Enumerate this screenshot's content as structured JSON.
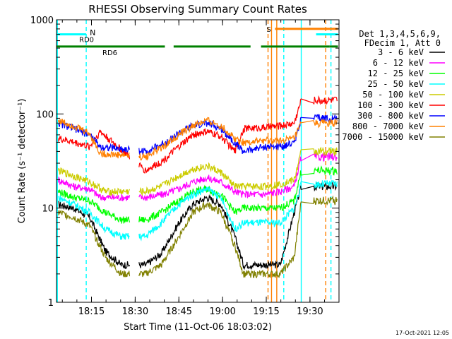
{
  "chart_data": {
    "type": "line",
    "title": "RHESSI Observing Summary Count Rates",
    "xlabel": "Start Time (11-Oct-06 18:03:02)",
    "ylabel": "Count Rate (s⁻¹ detector⁻¹)",
    "ylog": true,
    "ylim": [
      1,
      1000
    ],
    "xlim": [
      18.05,
      19.666
    ],
    "x_ticks": [
      {
        "value": 18.25,
        "label": "18:15"
      },
      {
        "value": 18.5,
        "label": "18:30"
      },
      {
        "value": 18.75,
        "label": "18:45"
      },
      {
        "value": 19.0,
        "label": "19:00"
      },
      {
        "value": 19.25,
        "label": "19:15"
      },
      {
        "value": 19.5,
        "label": "19:30"
      }
    ],
    "y_ticks": [
      {
        "value": 1,
        "label": "1"
      },
      {
        "value": 10,
        "label": "10"
      },
      {
        "value": 100,
        "label": "100"
      },
      {
        "value": 1000,
        "label": "1000"
      }
    ],
    "legend": {
      "placement": "right",
      "header": [
        "Det 1,3,4,5,6,9,",
        "FDecim 1, Att 0"
      ]
    },
    "series": [
      {
        "name": "3 - 6 keV",
        "color": "#000000",
        "x": [
          18.06,
          18.15,
          18.24,
          18.33,
          18.42,
          18.56,
          18.65,
          18.75,
          18.83,
          18.91,
          18.99,
          19.07,
          19.12,
          19.24,
          19.33,
          19.41,
          19.45
        ],
        "y": [
          11,
          10,
          8,
          3.5,
          2.5,
          2.5,
          3.3,
          7,
          11,
          13,
          11,
          5,
          2.5,
          2.5,
          2.5,
          9,
          17
        ]
      },
      {
        "name": "6 - 12 keV",
        "color": "#ff00ff",
        "x": [
          18.06,
          18.15,
          18.24,
          18.3,
          18.56,
          18.66,
          18.75,
          18.83,
          18.91,
          18.99,
          19.07,
          19.12,
          19.24,
          19.33,
          19.41,
          19.45
        ],
        "y": [
          20,
          17,
          16,
          13,
          13,
          14,
          16,
          19,
          21,
          19,
          15,
          14,
          14,
          15,
          17,
          35
        ]
      },
      {
        "name": "12 - 25 keV",
        "color": "#00ff00",
        "x": [
          18.06,
          18.15,
          18.24,
          18.33,
          18.42,
          18.56,
          18.65,
          18.75,
          18.83,
          18.91,
          18.99,
          19.07,
          19.12,
          19.24,
          19.33,
          19.41,
          19.45
        ],
        "y": [
          15,
          13,
          12,
          9,
          7.5,
          7.5,
          9,
          12,
          15,
          16,
          14,
          9,
          10,
          10,
          10,
          12,
          25
        ]
      },
      {
        "name": "25 - 50 keV",
        "color": "#00ffff",
        "x": [
          18.06,
          18.15,
          18.24,
          18.33,
          18.42,
          18.56,
          18.65,
          18.75,
          18.83,
          18.91,
          18.99,
          19.07,
          19.12,
          19.24,
          19.33,
          19.41,
          19.45
        ],
        "y": [
          13,
          11,
          9,
          6,
          5,
          5,
          7,
          11,
          14,
          16,
          13,
          6,
          7,
          7,
          7,
          10,
          18
        ]
      },
      {
        "name": "50 - 100 keV",
        "color": "#cccc00",
        "x": [
          18.06,
          18.15,
          18.24,
          18.33,
          18.42,
          18.56,
          18.65,
          18.75,
          18.83,
          18.91,
          18.99,
          19.07,
          19.12,
          19.24,
          19.33,
          19.41,
          19.45
        ],
        "y": [
          25,
          22,
          19,
          15,
          15,
          15,
          17,
          22,
          26,
          28,
          24,
          17,
          17,
          17,
          18,
          20,
          40
        ]
      },
      {
        "name": "100 - 300 keV",
        "color": "#ff0000",
        "x": [
          18.06,
          18.15,
          18.24,
          18.3,
          18.56,
          18.66,
          18.75,
          18.83,
          18.91,
          18.99,
          19.07,
          19.12,
          19.24,
          19.33,
          19.41,
          19.45
        ],
        "y": [
          55,
          50,
          45,
          65,
          25,
          32,
          45,
          60,
          65,
          58,
          40,
          70,
          72,
          75,
          80,
          140
        ]
      },
      {
        "name": "300 - 800 keV",
        "color": "#0000ff",
        "x": [
          18.06,
          18.15,
          18.24,
          18.3,
          18.56,
          18.66,
          18.75,
          18.83,
          18.91,
          18.99,
          19.07,
          19.12,
          19.24,
          19.33,
          19.41,
          19.45
        ],
        "y": [
          80,
          70,
          60,
          45,
          40,
          48,
          62,
          75,
          80,
          70,
          50,
          40,
          45,
          45,
          50,
          90
        ]
      },
      {
        "name": "800 - 7000 keV",
        "color": "#ff8000",
        "x": [
          18.06,
          18.15,
          18.24,
          18.3,
          18.56,
          18.66,
          18.75,
          18.83,
          18.91,
          18.99,
          19.07,
          19.12,
          19.24,
          19.33,
          19.41,
          19.45
        ],
        "y": [
          85,
          75,
          62,
          38,
          35,
          45,
          60,
          75,
          85,
          75,
          55,
          50,
          52,
          52,
          55,
          80
        ]
      },
      {
        "name": "7000 - 15000 keV",
        "color": "#808000",
        "x": [
          18.06,
          18.15,
          18.24,
          18.33,
          18.42,
          18.56,
          18.65,
          18.75,
          18.83,
          18.91,
          18.99,
          19.07,
          19.12,
          19.24,
          19.33,
          19.41,
          19.45
        ],
        "y": [
          9,
          8,
          6.5,
          3,
          2,
          2,
          2.5,
          5,
          9,
          11,
          9,
          4,
          2,
          2,
          2,
          3,
          12
        ]
      }
    ],
    "segments": [
      {
        "label": "RD0",
        "color": "#00ffff",
        "y": 700,
        "ranges": [
          [
            18.05,
            18.22
          ],
          [
            19.535,
            19.66
          ]
        ]
      },
      {
        "label": "RD6",
        "color": "#008000",
        "y": 520,
        "ranges": [
          [
            18.05,
            18.67
          ],
          [
            18.72,
            19.16
          ],
          [
            19.22,
            19.61
          ],
          [
            19.61,
            19.66
          ]
        ]
      },
      {
        "label": "S",
        "color": "#ff8000",
        "y": 800,
        "ranges": [
          [
            19.3,
            19.66
          ]
        ]
      }
    ],
    "markers": [
      {
        "label": "N",
        "color": "#00ffff",
        "x": 18.22,
        "style": "dashed"
      },
      {
        "label": "",
        "color": "#00ffff",
        "x": 19.35,
        "style": "dashed"
      },
      {
        "label": "",
        "color": "#00ffff",
        "x": 19.45,
        "style": "solid"
      },
      {
        "label": "",
        "color": "#ff8000",
        "x": 19.26,
        "style": "dashed"
      },
      {
        "label": "",
        "color": "#ff8000",
        "x": 19.28,
        "style": "solid"
      },
      {
        "label": "",
        "color": "#ff8000",
        "x": 19.31,
        "style": "solid"
      },
      {
        "label": "",
        "color": "#ff8000",
        "x": 19.59,
        "style": "dashed"
      },
      {
        "label": "",
        "color": "#00ffff",
        "x": 19.62,
        "style": "dashed"
      },
      {
        "label": "",
        "color": "#00ffff",
        "x": 18.055,
        "style": "solid"
      }
    ],
    "gaps": [
      [
        18.47,
        18.52
      ],
      [
        19.49,
        19.52
      ]
    ],
    "footer": "17-Oct-2021 12:05"
  }
}
